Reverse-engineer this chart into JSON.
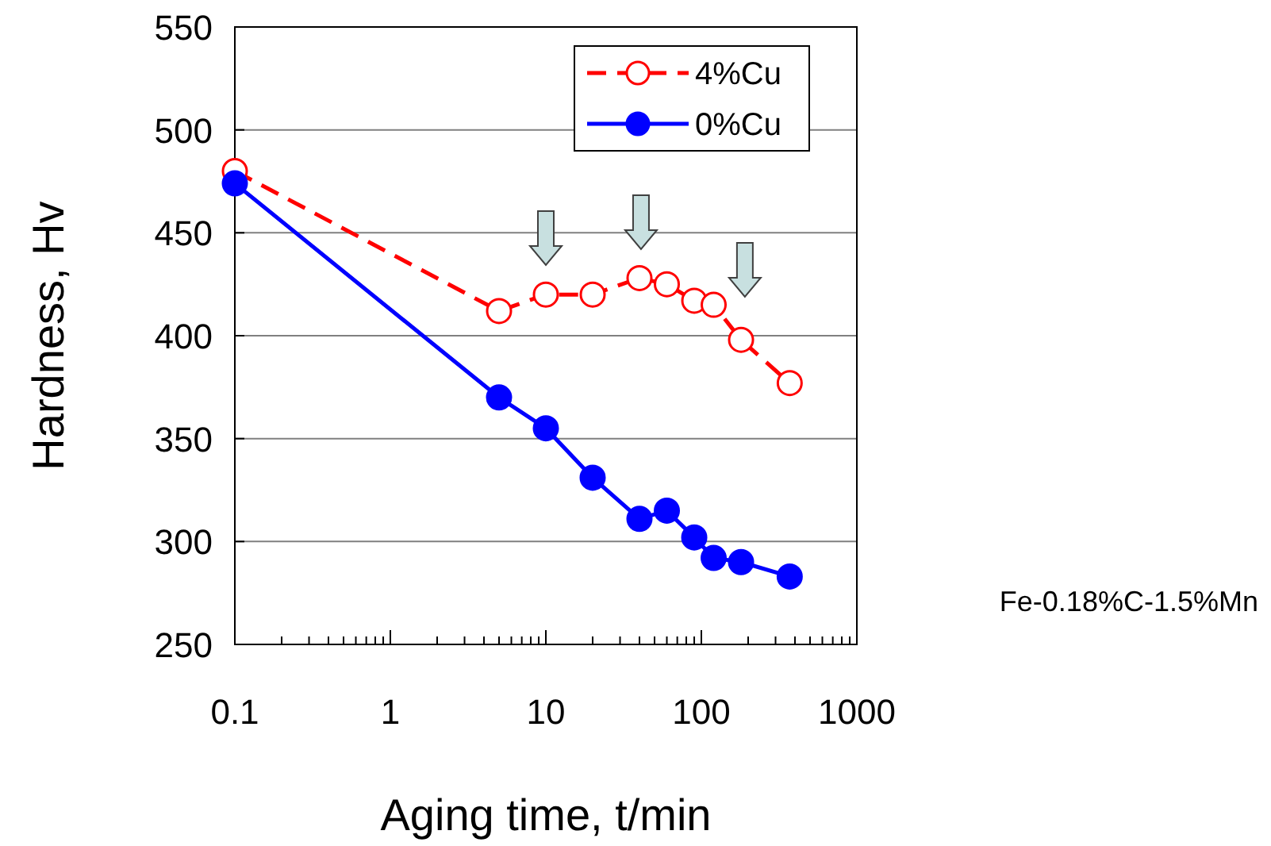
{
  "chart_data": {
    "type": "line",
    "xlabel": "Aging time, t/min",
    "ylabel": "Hardness, Hv",
    "log": "x",
    "grid": "y",
    "legend": "top right",
    "marker": "circle",
    "xlim": [
      0.1,
      1000
    ],
    "xticks": [
      {
        "value": 0.1,
        "label": "0.1"
      },
      {
        "value": 0.2,
        "label": null
      },
      {
        "value": 0.3,
        "label": null
      },
      {
        "value": 0.4,
        "label": null
      },
      {
        "value": 0.5,
        "label": null
      },
      {
        "value": 0.6,
        "label": null
      },
      {
        "value": 0.7,
        "label": null
      },
      {
        "value": 0.8,
        "label": null
      },
      {
        "value": 0.9,
        "label": null
      },
      1,
      {
        "value": 2,
        "label": null
      },
      {
        "value": 3,
        "label": null
      },
      {
        "value": 4,
        "label": null
      },
      {
        "value": 5,
        "label": null
      },
      {
        "value": 6,
        "label": null
      },
      {
        "value": 7,
        "label": null
      },
      {
        "value": 8,
        "label": null
      },
      {
        "value": 9,
        "label": null
      },
      10,
      {
        "value": 20,
        "label": null
      },
      {
        "value": 30,
        "label": null
      },
      {
        "value": 40,
        "label": null
      },
      {
        "value": 50,
        "label": null
      },
      {
        "value": 60,
        "label": null
      },
      {
        "value": 70,
        "label": null
      },
      {
        "value": 80,
        "label": null
      },
      {
        "value": 90,
        "label": null
      },
      100,
      {
        "value": 200,
        "label": null
      },
      {
        "value": 300,
        "label": null
      },
      {
        "value": 400,
        "label": null
      },
      {
        "value": 500,
        "label": null
      },
      {
        "value": 600,
        "label": null
      },
      {
        "value": 700,
        "label": null
      },
      {
        "value": 800,
        "label": null
      },
      {
        "value": 900,
        "label": null
      },
      1000
    ],
    "ylim": [
      250,
      550
    ],
    "yticks": [
      250,
      300,
      350,
      400,
      450,
      500,
      550
    ],
    "annotations": [
      "Fe-0.18%C-1.5%Mn"
    ],
    "series": [
      {
        "name": "4%Cu",
        "color": "#ff0000",
        "line_style": "dashed",
        "x": [
          0.1,
          5,
          10,
          20,
          40,
          60,
          90,
          120,
          180,
          370
        ],
        "values": [
          480,
          412,
          420,
          420,
          428,
          425,
          417,
          415,
          398,
          377
        ]
      },
      {
        "name": "0%Cu",
        "color": "#0000ff",
        "line_style": "solid",
        "x": [
          0.1,
          5,
          10,
          20,
          40,
          60,
          90,
          120,
          180,
          370
        ],
        "values": [
          474,
          370,
          355,
          331,
          311,
          315,
          302,
          292,
          290,
          283
        ]
      }
    ]
  }
}
